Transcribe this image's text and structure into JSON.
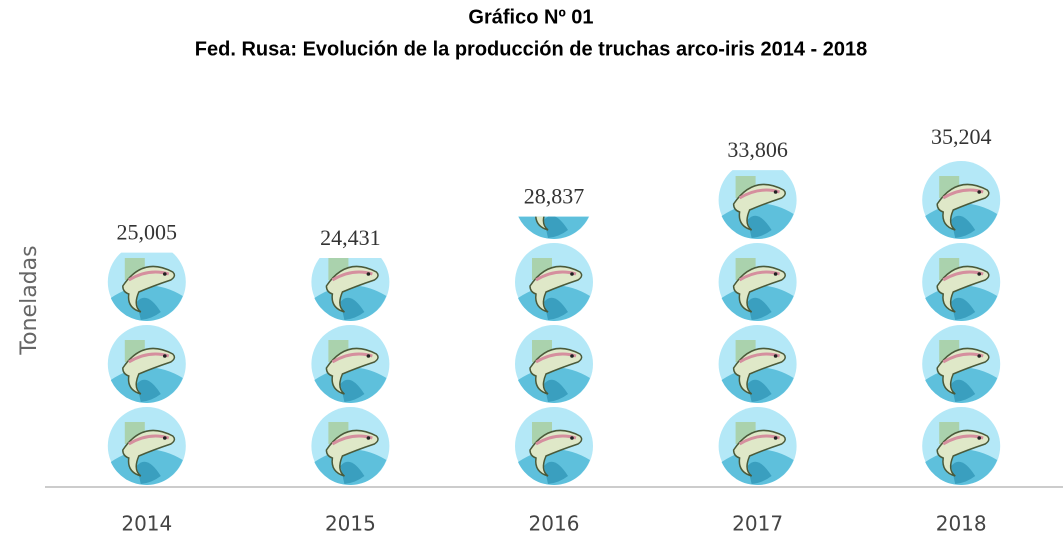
{
  "chart_data": {
    "type": "pictograph",
    "title": "Gráfico Nº 01",
    "subtitle": "Fed. Rusa: Evolución de la producción de truchas arco-iris 2014 - 2018",
    "y_label": "Toneladas",
    "categories": [
      "2014",
      "2015",
      "2016",
      "2017",
      "2018"
    ],
    "values": [
      25005,
      24431,
      28837,
      33806,
      35204
    ],
    "value_labels": [
      "25,005",
      "24,431",
      "28,837",
      "33,806",
      "35,204"
    ]
  }
}
